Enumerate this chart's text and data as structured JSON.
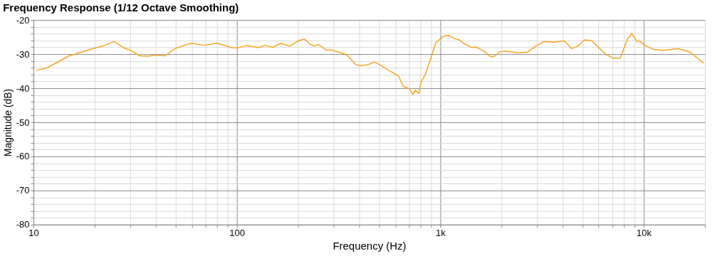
{
  "chart_data": {
    "type": "line",
    "title": "Frequency Response (1/12 Octave Smoothing)",
    "xlabel": "Frequency (Hz)",
    "ylabel": "Magnitude (dB)",
    "log": "x",
    "grid": true,
    "marker": "none",
    "line_style": "solid",
    "xlim": [
      10,
      20000
    ],
    "ylim": [
      -80,
      -20
    ],
    "xticks": [
      10,
      {
        "value": 20,
        "label": null
      },
      {
        "value": 30,
        "label": null
      },
      {
        "value": 40,
        "label": null
      },
      {
        "value": 50,
        "label": null
      },
      {
        "value": 60,
        "label": null
      },
      {
        "value": 70,
        "label": null
      },
      {
        "value": 80,
        "label": null
      },
      {
        "value": 90,
        "label": null
      },
      100,
      {
        "value": 200,
        "label": null
      },
      {
        "value": 300,
        "label": null
      },
      {
        "value": 400,
        "label": null
      },
      {
        "value": 500,
        "label": null
      },
      {
        "value": 600,
        "label": null
      },
      {
        "value": 700,
        "label": null
      },
      {
        "value": 800,
        "label": null
      },
      {
        "value": 900,
        "label": null
      },
      {
        "value": 1000,
        "label": "1k"
      },
      {
        "value": 2000,
        "label": null
      },
      {
        "value": 3000,
        "label": null
      },
      {
        "value": 4000,
        "label": null
      },
      {
        "value": 5000,
        "label": null
      },
      {
        "value": 6000,
        "label": null
      },
      {
        "value": 7000,
        "label": null
      },
      {
        "value": 8000,
        "label": null
      },
      {
        "value": 9000,
        "label": null
      },
      {
        "value": 10000,
        "label": "10k"
      },
      {
        "value": 20000,
        "label": null
      }
    ],
    "yticks": [
      -80,
      {
        "value": -78,
        "label": null
      },
      {
        "value": -76,
        "label": null
      },
      {
        "value": -74,
        "label": null
      },
      {
        "value": -72,
        "label": null
      },
      -70,
      {
        "value": -68,
        "label": null
      },
      {
        "value": -66,
        "label": null
      },
      {
        "value": -64,
        "label": null
      },
      {
        "value": -62,
        "label": null
      },
      -60,
      {
        "value": -58,
        "label": null
      },
      {
        "value": -56,
        "label": null
      },
      {
        "value": -54,
        "label": null
      },
      {
        "value": -52,
        "label": null
      },
      -50,
      {
        "value": -48,
        "label": null
      },
      {
        "value": -46,
        "label": null
      },
      {
        "value": -44,
        "label": null
      },
      {
        "value": -42,
        "label": null
      },
      -40,
      {
        "value": -38,
        "label": null
      },
      {
        "value": -36,
        "label": null
      },
      {
        "value": -34,
        "label": null
      },
      {
        "value": -32,
        "label": null
      },
      -30,
      {
        "value": -28,
        "label": null
      },
      {
        "value": -26,
        "label": null
      },
      {
        "value": -24,
        "label": null
      },
      {
        "value": -22,
        "label": null
      },
      -20
    ],
    "x": [
      10.3,
      11.7,
      15.0,
      19.8,
      21.8,
      24.9,
      27.7,
      30.5,
      33.4,
      36.7,
      39.8,
      44.3,
      50.0,
      59.5,
      69.0,
      80.0,
      94,
      100,
      112,
      128,
      137,
      150,
      165,
      181,
      202,
      215,
      228,
      241,
      252,
      275,
      294,
      323,
      345,
      385,
      411,
      440,
      477,
      509,
      552,
      623,
      658,
      703,
      733,
      753,
      784,
      805,
      838,
      896,
      950,
      1011,
      1052,
      1106,
      1141,
      1236,
      1323,
      1432,
      1492,
      1617,
      1776,
      1848,
      1950,
      2085,
      2417,
      2690,
      2997,
      3249,
      3617,
      4081,
      4424,
      4731,
      5126,
      5556,
      6020,
      6525,
      7074,
      7669,
      8314,
      8730,
      9253,
      9506,
      10164,
      11170,
      12420,
      14790,
      16900,
      19630
    ],
    "series": [
      {
        "color": "#f5a623",
        "values": [
          -34.8,
          -34.0,
          -30.5,
          -28.3,
          -27.7,
          -26.3,
          -28.1,
          -29.1,
          -30.5,
          -30.6,
          -30.3,
          -30.5,
          -28.3,
          -26.8,
          -27.4,
          -26.8,
          -28.1,
          -28.2,
          -27.5,
          -28.1,
          -27.4,
          -28.0,
          -26.8,
          -27.7,
          -26.0,
          -25.6,
          -27.0,
          -27.7,
          -27.2,
          -28.8,
          -28.8,
          -29.6,
          -30.1,
          -33.1,
          -33.4,
          -33.1,
          -32.3,
          -33.3,
          -34.6,
          -36.4,
          -39.5,
          -40.1,
          -41.9,
          -40.6,
          -41.5,
          -38.1,
          -36.4,
          -31.5,
          -26.7,
          -25.3,
          -24.6,
          -24.5,
          -25.1,
          -25.8,
          -27.1,
          -28.1,
          -27.9,
          -28.9,
          -30.8,
          -30.6,
          -29.4,
          -29.1,
          -29.6,
          -29.4,
          -27.4,
          -26.3,
          -26.5,
          -26.1,
          -28.4,
          -27.7,
          -25.8,
          -26.1,
          -28.1,
          -30.1,
          -31.2,
          -31.2,
          -25.6,
          -23.9,
          -26.3,
          -26.1,
          -27.5,
          -28.6,
          -28.9,
          -28.4,
          -29.4,
          -32.6
        ]
      }
    ]
  }
}
